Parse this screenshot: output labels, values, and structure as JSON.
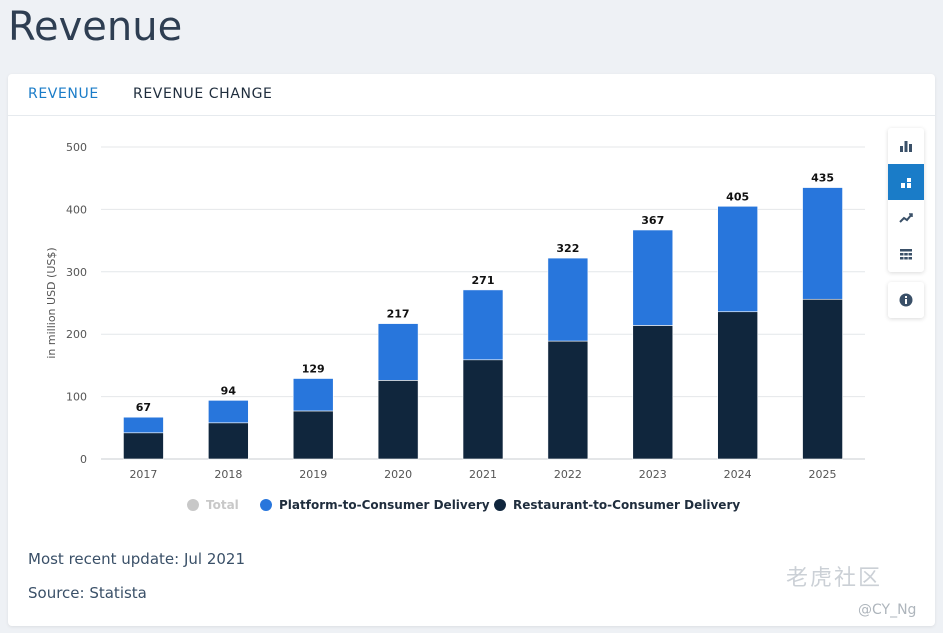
{
  "page": {
    "title": "Revenue"
  },
  "tabs": [
    {
      "label": "REVENUE",
      "active": true
    },
    {
      "label": "REVENUE CHANGE",
      "active": false
    }
  ],
  "toolbar": {
    "icons": [
      "bar-chart-icon",
      "stacked-bar-icon",
      "trend-line-icon",
      "table-icon",
      "info-icon"
    ],
    "active": "stacked-bar-icon"
  },
  "chart_data": {
    "type": "bar",
    "stacked": true,
    "categories": [
      "2017",
      "2018",
      "2019",
      "2020",
      "2021",
      "2022",
      "2023",
      "2024",
      "2025"
    ],
    "series": [
      {
        "name": "Restaurant-to-Consumer Delivery",
        "color": "#10263d",
        "values": [
          42,
          58,
          77,
          126,
          159,
          189,
          214,
          236,
          256
        ]
      },
      {
        "name": "Platform-to-Consumer Delivery",
        "color": "#2876dc",
        "values": [
          25,
          36,
          52,
          91,
          112,
          133,
          153,
          169,
          179
        ]
      }
    ],
    "totals": [
      "67",
      "94",
      "129",
      "217",
      "271",
      "322",
      "367",
      "405",
      "435"
    ],
    "ylabel": "in million USD (US$)",
    "ylim": [
      0,
      500
    ],
    "yticks": [
      "0",
      "100",
      "200",
      "300",
      "400",
      "500"
    ],
    "grid": true,
    "legend": [
      {
        "label": "Total",
        "color": "#c8c8c8",
        "disabled": true
      },
      {
        "label": "Platform-to-Consumer Delivery",
        "color": "#2876dc",
        "disabled": false
      },
      {
        "label": "Restaurant-to-Consumer Delivery",
        "color": "#10263d",
        "disabled": false
      }
    ],
    "legend_position": "bottom"
  },
  "footer": {
    "update": "Most recent update: Jul 2021",
    "source": "Source: Statista"
  },
  "watermark": {
    "brand": "老虎社区",
    "handle": "@CY_Ng"
  }
}
